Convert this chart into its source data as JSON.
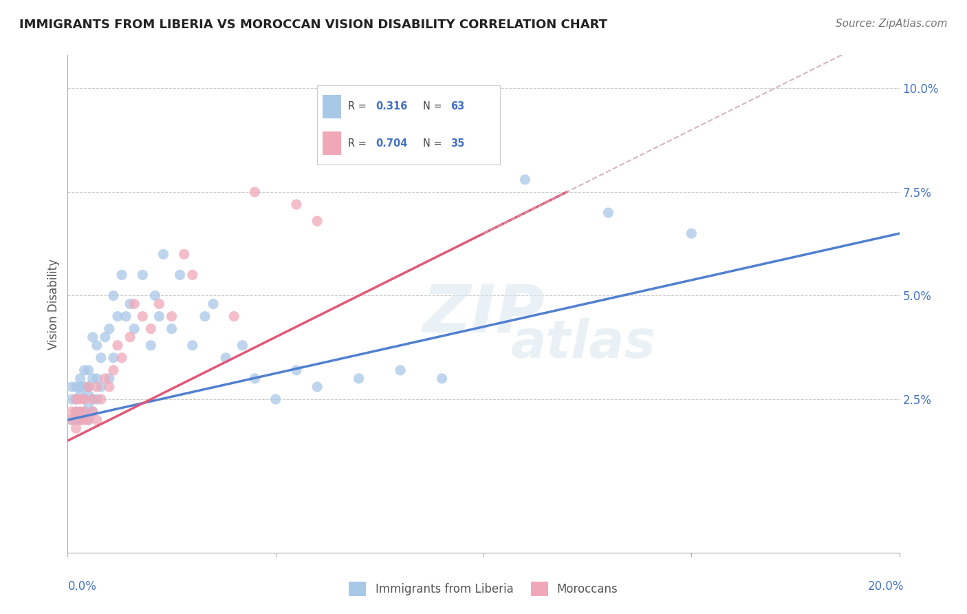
{
  "title": "IMMIGRANTS FROM LIBERIA VS MOROCCAN VISION DISABILITY CORRELATION CHART",
  "source": "Source: ZipAtlas.com",
  "ylabel": "Vision Disability",
  "ylabel_right_ticks": [
    "10.0%",
    "7.5%",
    "5.0%",
    "2.5%"
  ],
  "ylabel_right_vals": [
    0.1,
    0.075,
    0.05,
    0.025
  ],
  "xlim": [
    0.0,
    0.2
  ],
  "ylim": [
    -0.012,
    0.108
  ],
  "grid_color": "#cccccc",
  "background_color": "#ffffff",
  "watermark": "ZIPatlas",
  "legend1_r": "0.316",
  "legend1_n": "63",
  "legend2_r": "0.704",
  "legend2_n": "35",
  "blue_color": "#a8c8e8",
  "pink_color": "#f0a8b8",
  "line_blue": "#5080d0",
  "line_pink": "#e05878",
  "line_dashed_color": "#d0a0b0",
  "liberia_x": [
    0.001,
    0.001,
    0.001,
    0.002,
    0.002,
    0.002,
    0.002,
    0.003,
    0.003,
    0.003,
    0.003,
    0.003,
    0.004,
    0.004,
    0.004,
    0.004,
    0.005,
    0.005,
    0.005,
    0.005,
    0.005,
    0.006,
    0.006,
    0.006,
    0.006,
    0.007,
    0.007,
    0.007,
    0.008,
    0.008,
    0.009,
    0.01,
    0.01,
    0.011,
    0.011,
    0.012,
    0.013,
    0.014,
    0.015,
    0.016,
    0.018,
    0.02,
    0.021,
    0.022,
    0.023,
    0.025,
    0.027,
    0.03,
    0.033,
    0.035,
    0.038,
    0.042,
    0.045,
    0.05,
    0.055,
    0.06,
    0.07,
    0.08,
    0.09,
    0.1,
    0.11,
    0.13,
    0.15
  ],
  "liberia_y": [
    0.02,
    0.025,
    0.028,
    0.02,
    0.022,
    0.025,
    0.028,
    0.02,
    0.022,
    0.026,
    0.028,
    0.03,
    0.022,
    0.025,
    0.028,
    0.032,
    0.02,
    0.023,
    0.026,
    0.028,
    0.032,
    0.022,
    0.025,
    0.03,
    0.04,
    0.025,
    0.03,
    0.038,
    0.028,
    0.035,
    0.04,
    0.03,
    0.042,
    0.035,
    0.05,
    0.045,
    0.055,
    0.045,
    0.048,
    0.042,
    0.055,
    0.038,
    0.05,
    0.045,
    0.06,
    0.042,
    0.055,
    0.038,
    0.045,
    0.048,
    0.035,
    0.038,
    0.03,
    0.025,
    0.032,
    0.028,
    0.03,
    0.032,
    0.03,
    0.088,
    0.078,
    0.07,
    0.065
  ],
  "moroccan_x": [
    0.001,
    0.001,
    0.002,
    0.002,
    0.002,
    0.003,
    0.003,
    0.003,
    0.004,
    0.004,
    0.004,
    0.005,
    0.005,
    0.006,
    0.006,
    0.007,
    0.007,
    0.008,
    0.009,
    0.01,
    0.011,
    0.012,
    0.013,
    0.015,
    0.016,
    0.018,
    0.02,
    0.022,
    0.025,
    0.028,
    0.03,
    0.04,
    0.045,
    0.055,
    0.06
  ],
  "moroccan_y": [
    0.02,
    0.022,
    0.018,
    0.022,
    0.025,
    0.02,
    0.022,
    0.025,
    0.02,
    0.022,
    0.025,
    0.02,
    0.028,
    0.022,
    0.025,
    0.02,
    0.028,
    0.025,
    0.03,
    0.028,
    0.032,
    0.038,
    0.035,
    0.04,
    0.048,
    0.045,
    0.042,
    0.048,
    0.045,
    0.06,
    0.055,
    0.045,
    0.075,
    0.072,
    0.068
  ]
}
